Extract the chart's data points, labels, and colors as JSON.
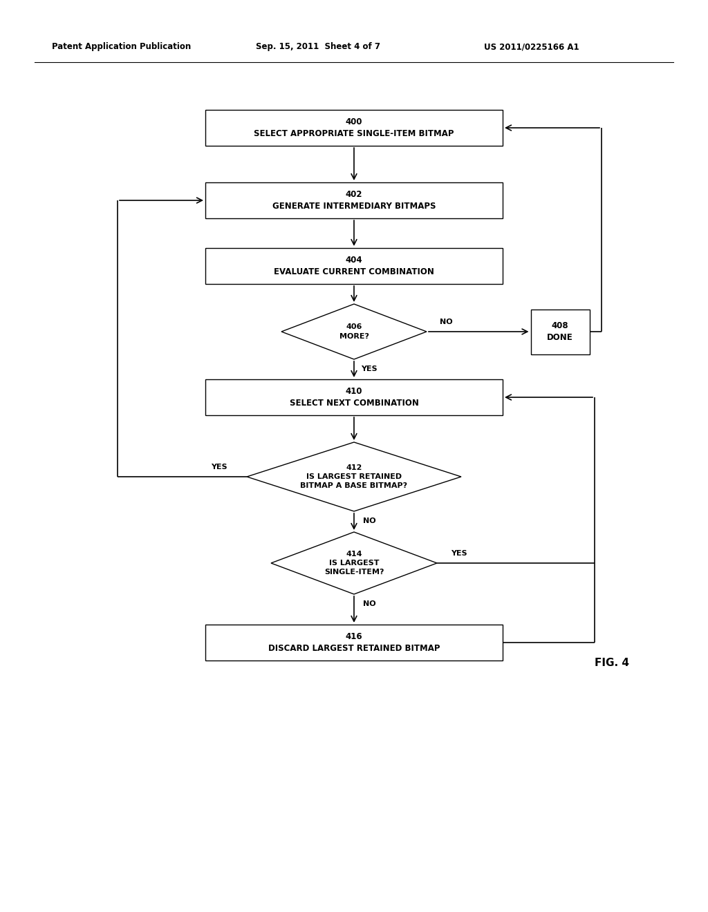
{
  "header_left": "Patent Application Publication",
  "header_mid": "Sep. 15, 2011  Sheet 4 of 7",
  "header_right": "US 2011/0225166 A1",
  "fig_label": "FIG. 4",
  "background_color": "#ffffff",
  "nodes": {
    "400": {
      "label": "400\nSELECT APPROPRIATE SINGLE-ITEM BITMAP"
    },
    "402": {
      "label": "402\nGENERATE INTERMEDIARY BITMAPS"
    },
    "404": {
      "label": "404\nEVALUATE CURRENT COMBINATION"
    },
    "406": {
      "label": "406\nMORE?"
    },
    "408": {
      "label": "408\nDONE"
    },
    "410": {
      "label": "410\nSELECT NEXT COMBINATION"
    },
    "412": {
      "label": "412\nIS LARGEST RETAINED\nBITMAP A BASE BITMAP?"
    },
    "414": {
      "label": "414\nIS LARGEST\nSINGLE-ITEM?"
    },
    "416": {
      "label": "416\nDISCARD LARGEST RETAINED BITMAP"
    }
  }
}
